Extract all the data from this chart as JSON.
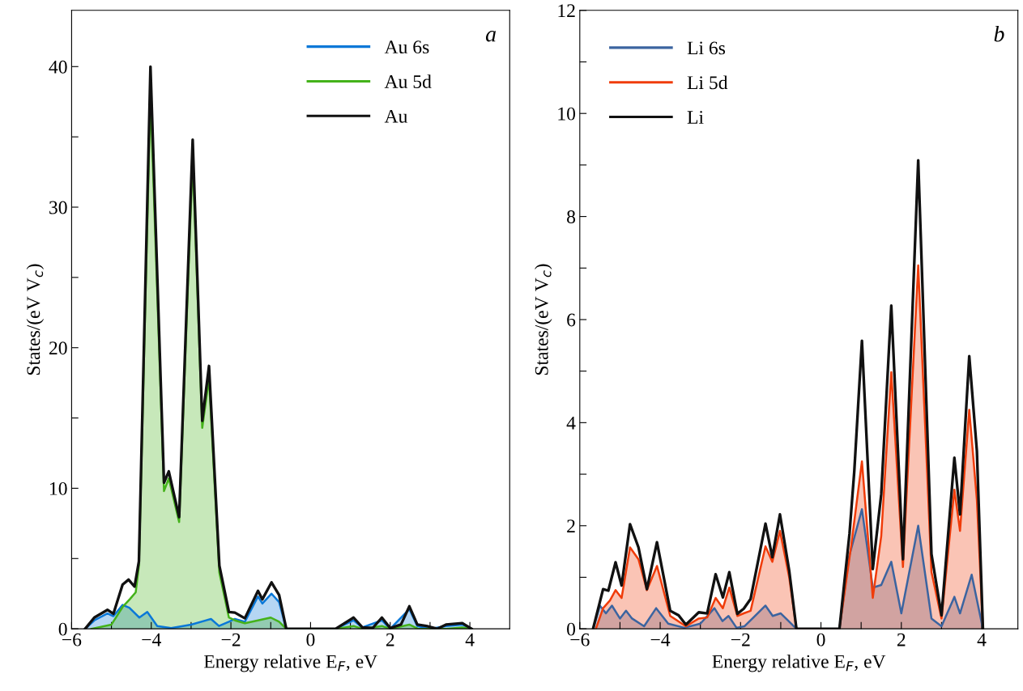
{
  "chart_data": [
    {
      "type": "line",
      "xlabel": "Energy relative E$_{F}$, eV",
      "ylabel": "States/(eV V$_{c}$)",
      "annotations": [
        "a"
      ],
      "legend": "top right",
      "grid": false,
      "xlim": [
        -6,
        5
      ],
      "ylim": [
        0,
        44
      ],
      "xticks": [
        {
          "value": -6,
          "label": "−6"
        },
        {
          "value": -5,
          "label": null
        },
        {
          "value": -4,
          "label": "−4"
        },
        {
          "value": -3,
          "label": null
        },
        {
          "value": -2,
          "label": "−2"
        },
        {
          "value": -1,
          "label": null
        },
        0,
        {
          "value": 1,
          "label": null
        },
        2,
        {
          "value": 3,
          "label": null
        },
        4
      ],
      "yticks": [
        0,
        {
          "value": 5,
          "label": null
        },
        10,
        {
          "value": 15,
          "label": null
        },
        20,
        {
          "value": 25,
          "label": null
        },
        30,
        {
          "value": 35,
          "label": null
        },
        40
      ],
      "series": [
        {
          "name": "Au 6s",
          "type": "area",
          "color": "#0a78d8",
          "x": [
            -5.66,
            -5.43,
            -5.1,
            -4.95,
            -4.72,
            -4.55,
            -4.3,
            -4.1,
            -3.85,
            -3.5,
            -3.0,
            -2.5,
            -2.3,
            -2.05,
            -1.9,
            -1.65,
            -1.32,
            -1.21,
            -0.98,
            -0.79,
            -0.61,
            0.63,
            1.08,
            1.3,
            1.79,
            2.0,
            2.48,
            2.68,
            3.0,
            3.4,
            3.81,
            4.04
          ],
          "values": [
            0,
            0.6,
            1.1,
            0.9,
            1.7,
            1.5,
            0.8,
            1.2,
            0.2,
            0.05,
            0.3,
            0.7,
            0.2,
            0.5,
            0.7,
            0.5,
            2.3,
            1.8,
            2.5,
            1.9,
            0,
            0,
            0.6,
            0.1,
            0.6,
            0,
            1.4,
            0.2,
            0,
            0.2,
            0.3,
            0
          ]
        },
        {
          "name": "Au 5d",
          "type": "area",
          "color": "#44b21a",
          "x": [
            -5.5,
            -5.0,
            -4.72,
            -4.54,
            -4.39,
            -4.31,
            -4.02,
            -3.68,
            -3.56,
            -3.3,
            -2.96,
            -2.72,
            -2.55,
            -2.29,
            -2.05,
            -1.9,
            -1.65,
            -1.32,
            -1.0,
            -0.79,
            -0.61,
            0.63,
            1.08,
            1.3,
            1.79,
            2.0,
            2.48,
            2.7,
            3.4,
            3.81,
            4.04
          ],
          "values": [
            0,
            0.3,
            1.55,
            2.1,
            2.6,
            4.5,
            38,
            9.8,
            10.7,
            7.6,
            33.5,
            14.3,
            17.8,
            4.0,
            0.8,
            0.6,
            0.4,
            0.6,
            0.8,
            0.5,
            0,
            0,
            0.2,
            0,
            0.2,
            0,
            0.3,
            0,
            0,
            0.1,
            0
          ]
        },
        {
          "name": "Au",
          "color": "#111111",
          "x": [
            -5.66,
            -5.43,
            -5.1,
            -4.95,
            -4.72,
            -4.57,
            -4.42,
            -4.31,
            -4.02,
            -3.68,
            -3.56,
            -3.3,
            -2.96,
            -2.72,
            -2.55,
            -2.29,
            -2.05,
            -1.9,
            -1.65,
            -1.32,
            -1.21,
            -0.98,
            -0.79,
            -0.61,
            0.63,
            1.08,
            1.3,
            1.56,
            1.79,
            2.0,
            2.27,
            2.48,
            2.68,
            2.91,
            3.18,
            3.4,
            3.81,
            4.04
          ],
          "values": [
            0,
            0.8,
            1.35,
            1.07,
            3.15,
            3.5,
            3.0,
            4.8,
            40,
            10.4,
            11.2,
            7.95,
            34.8,
            14.8,
            18.7,
            4.5,
            1.2,
            1.15,
            0.75,
            2.7,
            2.1,
            3.3,
            2.4,
            0,
            0,
            0.8,
            0.1,
            0.05,
            0.8,
            0.05,
            0.3,
            1.6,
            0.3,
            0.2,
            0,
            0.3,
            0.4,
            0
          ]
        }
      ]
    },
    {
      "type": "line",
      "xlabel": "Energy relative E$_{F}$, eV",
      "ylabel": "States/(eV V$_{c}$)",
      "annotations": [
        "b"
      ],
      "legend": "top left",
      "grid": false,
      "xlim": [
        -6,
        4.9
      ],
      "ylim": [
        0,
        12
      ],
      "xticks": [
        {
          "value": -6,
          "label": "−6"
        },
        {
          "value": -5,
          "label": null
        },
        {
          "value": -4,
          "label": "−4"
        },
        {
          "value": -3,
          "label": null
        },
        {
          "value": -2,
          "label": "−2"
        },
        {
          "value": -1,
          "label": null
        },
        0,
        {
          "value": 1,
          "label": null
        },
        2,
        {
          "value": 3,
          "label": null
        },
        4
      ],
      "yticks": [
        0,
        {
          "value": 1,
          "label": null
        },
        2,
        {
          "value": 3,
          "label": null
        },
        4,
        {
          "value": 5,
          "label": null
        },
        6,
        {
          "value": 7,
          "label": null
        },
        8,
        {
          "value": 9,
          "label": null
        },
        10,
        {
          "value": 11,
          "label": null
        },
        12
      ],
      "series": [
        {
          "name": "Li 6s",
          "type": "area",
          "color": "#3b64a0",
          "x": [
            -5.67,
            -5.5,
            -5.35,
            -5.2,
            -5.0,
            -4.85,
            -4.7,
            -4.4,
            -4.1,
            -3.8,
            -3.4,
            -3.0,
            -2.65,
            -2.45,
            -2.3,
            -2.1,
            -1.9,
            -1.38,
            -1.2,
            -1.0,
            -0.61,
            0.46,
            0.7,
            1.02,
            1.29,
            1.5,
            1.75,
            2.0,
            2.42,
            2.75,
            3.0,
            3.32,
            3.46,
            3.75,
            4.03
          ],
          "values": [
            0,
            0.45,
            0.3,
            0.45,
            0.2,
            0.35,
            0.2,
            0.05,
            0.4,
            0.1,
            0.02,
            0.1,
            0.4,
            0.15,
            0.25,
            0.02,
            0.05,
            0.45,
            0.25,
            0.3,
            0,
            0,
            1.4,
            2.32,
            0.8,
            0.85,
            1.3,
            0.3,
            2.0,
            0.2,
            0.05,
            0.62,
            0.3,
            1.05,
            0
          ]
        },
        {
          "name": "Li 5d",
          "type": "area",
          "color": "#f03c0a",
          "x": [
            -5.6,
            -5.42,
            -5.25,
            -5.11,
            -4.96,
            -4.75,
            -4.54,
            -4.33,
            -4.08,
            -3.75,
            -3.36,
            -3.04,
            -2.83,
            -2.62,
            -2.44,
            -2.28,
            -2.08,
            -1.92,
            -1.75,
            -1.38,
            -1.21,
            -1.02,
            -0.79,
            -0.61,
            0.46,
            0.75,
            1.02,
            1.29,
            1.5,
            1.75,
            2.04,
            2.42,
            2.75,
            3.0,
            3.32,
            3.46,
            3.69,
            3.88,
            4.03
          ],
          "values": [
            0,
            0.4,
            0.55,
            0.75,
            0.6,
            1.58,
            1.35,
            0.75,
            1.22,
            0.25,
            0.05,
            0.2,
            0.22,
            0.6,
            0.4,
            0.8,
            0.25,
            0.3,
            0.35,
            1.6,
            1.3,
            1.9,
            1.0,
            0,
            0,
            1.6,
            3.25,
            0.6,
            1.8,
            4.98,
            1.2,
            7.05,
            1.1,
            0.2,
            2.7,
            1.9,
            4.25,
            2.5,
            0
          ]
        },
        {
          "name": "Li",
          "color": "#111111",
          "x": [
            -5.67,
            -5.42,
            -5.29,
            -5.11,
            -4.96,
            -4.75,
            -4.54,
            -4.33,
            -4.08,
            -3.75,
            -3.54,
            -3.36,
            -3.04,
            -2.83,
            -2.62,
            -2.44,
            -2.28,
            -2.08,
            -1.92,
            -1.75,
            -1.38,
            -1.21,
            -1.02,
            -0.79,
            -0.61,
            0.46,
            0.71,
            0.83,
            1.02,
            1.29,
            1.5,
            1.75,
            2.04,
            2.42,
            2.75,
            3.0,
            3.32,
            3.46,
            3.69,
            3.88,
            4.03
          ],
          "values": [
            0,
            0.77,
            0.74,
            1.29,
            0.84,
            2.03,
            1.58,
            0.77,
            1.68,
            0.35,
            0.26,
            0.08,
            0.32,
            0.3,
            1.06,
            0.61,
            1.1,
            0.29,
            0.39,
            0.58,
            2.04,
            1.39,
            2.22,
            1.13,
            0,
            0,
            1.84,
            3.06,
            5.59,
            1.16,
            2.61,
            6.27,
            1.35,
            9.09,
            1.45,
            0.26,
            3.32,
            2.22,
            5.29,
            3.45,
            0
          ]
        }
      ]
    }
  ]
}
